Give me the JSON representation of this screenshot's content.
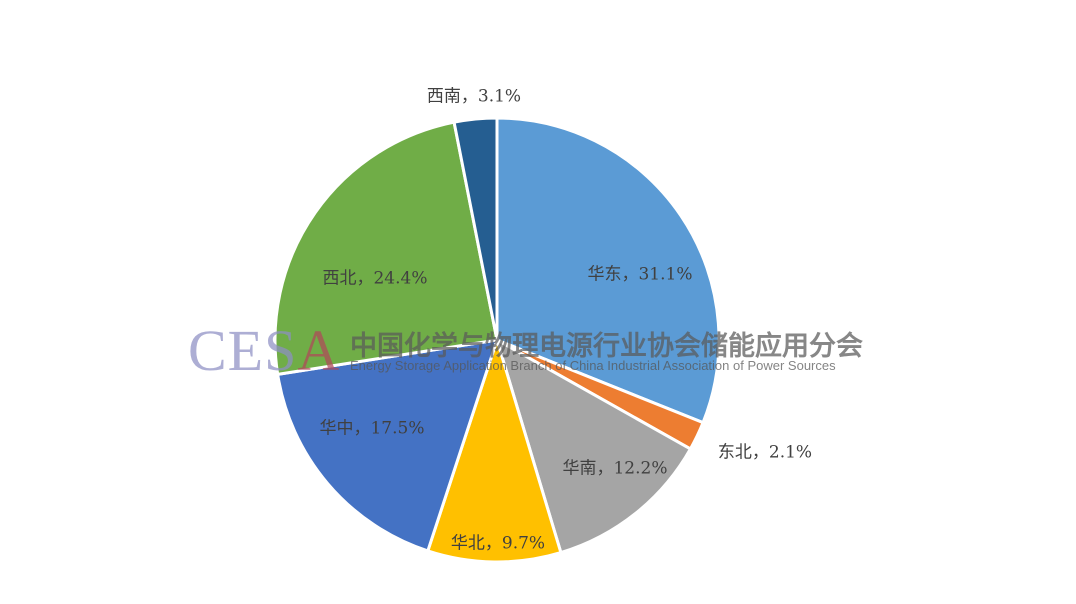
{
  "chart_data": {
    "type": "pie",
    "categories": [
      "华东",
      "东北",
      "华南",
      "华北",
      "华中",
      "西北",
      "西南"
    ],
    "values": [
      31.1,
      2.1,
      12.2,
      9.7,
      17.5,
      24.4,
      3.1
    ],
    "colors": [
      "#5B9BD5",
      "#ED7D31",
      "#A5A5A5",
      "#FFC000",
      "#4472C4",
      "#70AD47",
      "#255E91"
    ],
    "labels": [
      "华东，31.1%",
      "东北，2.1%",
      "华南，12.2%",
      "华北，9.7%",
      "华中，17.5%",
      "西北，24.4%",
      "西南，3.1%"
    ],
    "start_angle": "top, clockwise",
    "legend": "none"
  },
  "watermark": {
    "logo": "CESA",
    "logo_main": "CES",
    "logo_accent": "A",
    "name_cn": "中国化学与物理电源行业协会储能应用分会",
    "name_en": "Energy Storage Application Branch of China Industrial Association of Power Sources"
  }
}
